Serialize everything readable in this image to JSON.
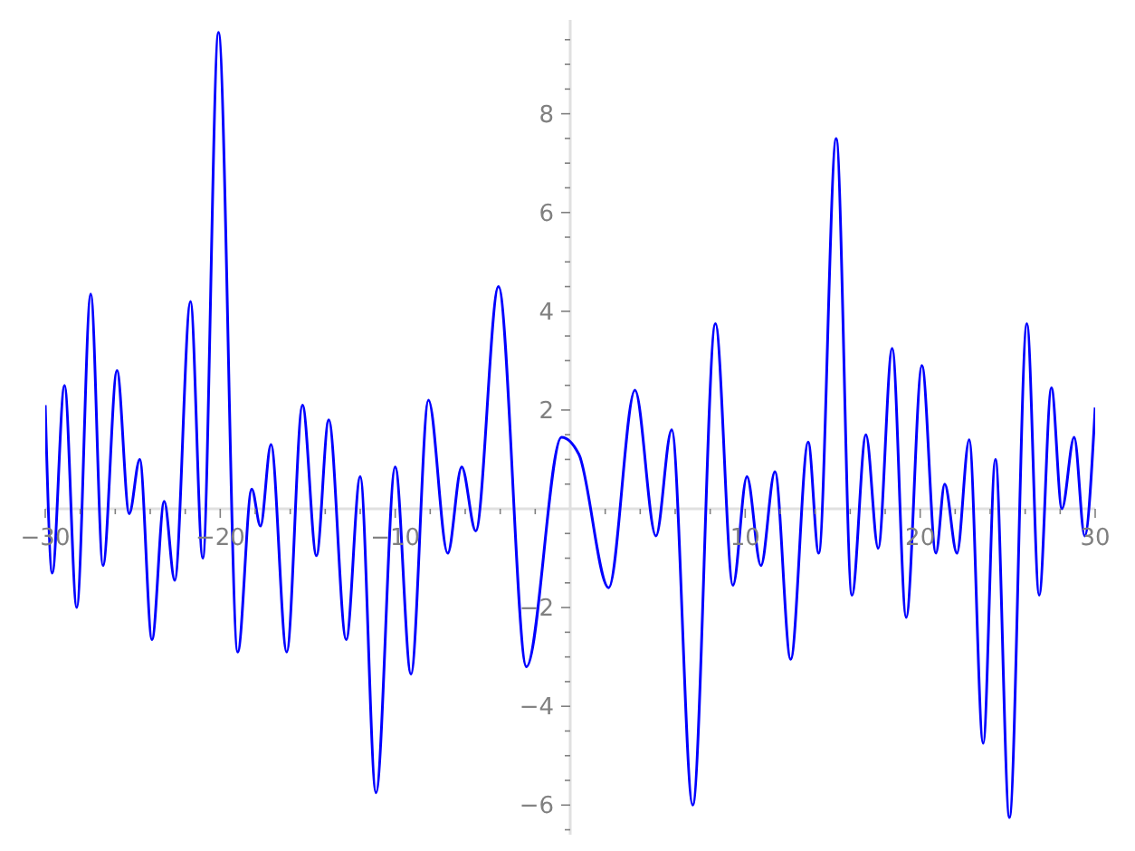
{
  "chart_data": {
    "type": "line",
    "x": [
      -30,
      -29.6,
      -28.9,
      -28.2,
      -27.4,
      -26.7,
      -25.9,
      -25.2,
      -24.6,
      -23.9,
      -23.2,
      -22.6,
      -21.7,
      -21.0,
      -20.1,
      -19.0,
      -18.2,
      -17.7,
      -17.1,
      -16.2,
      -15.3,
      -14.5,
      -13.8,
      -12.8,
      -12.0,
      -11.1,
      -10.0,
      -9.1,
      -8.1,
      -7.0,
      -6.2,
      -5.4,
      -4.1,
      -2.5,
      -0.5,
      0.5,
      2.2,
      3.7,
      4.9,
      5.8,
      7.0,
      8.3,
      9.3,
      10.1,
      10.9,
      11.7,
      12.6,
      13.6,
      14.2,
      15.2,
      16.1,
      16.9,
      17.6,
      18.4,
      19.2,
      20.1,
      20.9,
      21.4,
      22.1,
      22.8,
      23.6,
      24.3,
      25.1,
      26.1,
      26.8,
      27.5,
      28.1,
      28.8,
      29.4,
      30
    ],
    "series": [
      {
        "color": "#0000ff",
        "values": [
          2.1,
          -1.3,
          2.5,
          -2.0,
          4.35,
          -1.15,
          2.8,
          -0.1,
          1.0,
          -2.65,
          0.15,
          -1.45,
          4.2,
          -1.0,
          9.65,
          -2.9,
          0.4,
          -0.35,
          1.3,
          -2.9,
          2.1,
          -0.95,
          1.8,
          -2.65,
          0.65,
          -5.75,
          0.85,
          -3.35,
          2.2,
          -0.9,
          0.85,
          -0.45,
          4.5,
          -3.2,
          1.45,
          1.1,
          -1.6,
          2.4,
          -0.55,
          1.6,
          -6.0,
          3.75,
          -1.55,
          0.65,
          -1.15,
          0.75,
          -3.05,
          1.35,
          -0.9,
          7.5,
          -1.75,
          1.5,
          -0.8,
          3.25,
          -2.2,
          2.9,
          -0.9,
          0.5,
          -0.9,
          1.4,
          -4.75,
          1.0,
          -6.25,
          3.75,
          -1.75,
          2.45,
          0.0,
          1.45,
          -0.55,
          2.05
        ]
      }
    ],
    "xlim": [
      -30,
      30
    ],
    "xticks": [
      {
        "value": -30,
        "label": "−30"
      },
      {
        "value": -28,
        "label": null
      },
      {
        "value": -26,
        "label": null
      },
      {
        "value": -24,
        "label": null
      },
      {
        "value": -22,
        "label": null
      },
      {
        "value": -20,
        "label": "−20"
      },
      {
        "value": -18,
        "label": null
      },
      {
        "value": -16,
        "label": null
      },
      {
        "value": -14,
        "label": null
      },
      {
        "value": -12,
        "label": null
      },
      {
        "value": -10,
        "label": "−10"
      },
      {
        "value": -8,
        "label": null
      },
      {
        "value": -6,
        "label": null
      },
      {
        "value": -4,
        "label": null
      },
      {
        "value": -2,
        "label": null
      },
      {
        "value": 2,
        "label": null
      },
      {
        "value": 4,
        "label": null
      },
      {
        "value": 6,
        "label": null
      },
      {
        "value": 8,
        "label": null
      },
      {
        "value": 10,
        "label": "10"
      },
      {
        "value": 12,
        "label": null
      },
      {
        "value": 14,
        "label": null
      },
      {
        "value": 16,
        "label": null
      },
      {
        "value": 18,
        "label": null
      },
      {
        "value": 20,
        "label": "20"
      },
      {
        "value": 22,
        "label": null
      },
      {
        "value": 24,
        "label": null
      },
      {
        "value": 26,
        "label": null
      },
      {
        "value": 28,
        "label": null
      },
      {
        "value": 30,
        "label": "30"
      }
    ],
    "ylim": [
      -6.6,
      9.9
    ],
    "yticks": [
      {
        "value": -6.5,
        "label": null
      },
      {
        "value": -6,
        "label": "−6"
      },
      {
        "value": -5.5,
        "label": null
      },
      {
        "value": -5,
        "label": null
      },
      {
        "value": -4.5,
        "label": null
      },
      {
        "value": -4,
        "label": "−4"
      },
      {
        "value": -3.5,
        "label": null
      },
      {
        "value": -3,
        "label": null
      },
      {
        "value": -2.5,
        "label": null
      },
      {
        "value": -2,
        "label": "−2"
      },
      {
        "value": -1.5,
        "label": null
      },
      {
        "value": -1,
        "label": null
      },
      {
        "value": -0.5,
        "label": null
      },
      {
        "value": 0.5,
        "label": null
      },
      {
        "value": 1,
        "label": null
      },
      {
        "value": 1.5,
        "label": null
      },
      {
        "value": 2,
        "label": "2"
      },
      {
        "value": 2.5,
        "label": null
      },
      {
        "value": 3,
        "label": null
      },
      {
        "value": 3.5,
        "label": null
      },
      {
        "value": 4,
        "label": "4"
      },
      {
        "value": 4.5,
        "label": null
      },
      {
        "value": 5,
        "label": null
      },
      {
        "value": 5.5,
        "label": null
      },
      {
        "value": 6,
        "label": "6"
      },
      {
        "value": 6.5,
        "label": null
      },
      {
        "value": 7,
        "label": null
      },
      {
        "value": 7.5,
        "label": null
      },
      {
        "value": 8,
        "label": "8"
      },
      {
        "value": 8.5,
        "label": null
      },
      {
        "value": 9,
        "label": null
      },
      {
        "value": 9.5,
        "label": null
      }
    ],
    "marker": "none",
    "line_style": "solid",
    "grid": false,
    "legend": false
  }
}
